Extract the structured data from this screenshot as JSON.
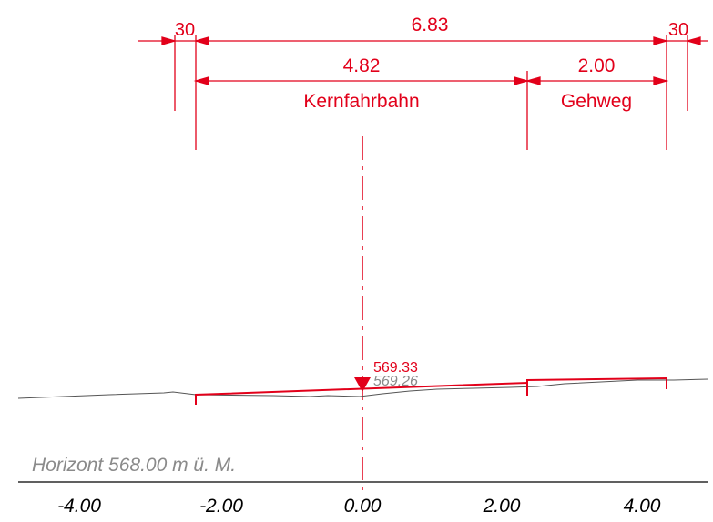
{
  "dimensions": {
    "total_width": "6.83",
    "left_offset": "30",
    "right_offset": "30",
    "lane_width": "4.82",
    "lane_label": "Kernfahrbahn",
    "sidewalk_width": "2.00",
    "sidewalk_label": "Gehweg"
  },
  "elevations": {
    "design": "569.33",
    "existing": "569.26"
  },
  "horizon": {
    "label": "Horizont 568.00 m ü. M."
  },
  "axis": {
    "ticks": [
      "-4.00",
      "-2.00",
      "0.00",
      "2.00",
      "4.00"
    ]
  },
  "colors": {
    "design": "#e2001a",
    "terrain": "#555555",
    "axis": "#000000",
    "horizon_label": "#8a8a8a"
  }
}
